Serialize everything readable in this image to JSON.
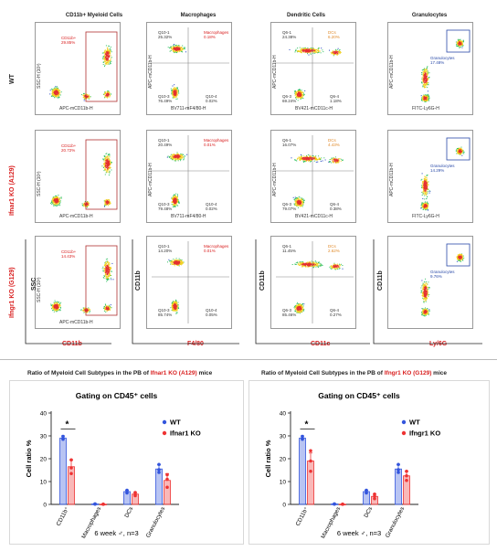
{
  "column_titles": [
    "CD11b+ Myeloid Cells",
    "Macrophages",
    "Dendritic Cells",
    "Granulocytes"
  ],
  "rows": [
    {
      "label": "WT",
      "label_color": "#222222",
      "panels": [
        {
          "gate_name": "CD11b+",
          "gate_pct": "29.85%",
          "xlab": "APC-mCD11b-H",
          "ylab": "SSC-H (10³)",
          "type": "scatter1"
        },
        {
          "q1": "Q10-1\n25.32%",
          "q2": "Macrophages\n0.18%",
          "q3": "Q10-3\n76.49%",
          "q4": "Q10-4\n0.02%",
          "xlab": "BV711-mF4/80-H",
          "ylab": "APC-mCD11b-H",
          "type": "mac"
        },
        {
          "q1": "Q6-1\n24.38%",
          "q2": "DCs\n6.20%",
          "q3": "Q6-3\n69.24%",
          "q4": "Q6-4\n1.18%",
          "xlab": "BV421-mCD11c-H",
          "ylab": "APC-mCD11b-H",
          "type": "dc"
        },
        {
          "gate": "Granulocytes\n17.48%",
          "xlab": "FITC-Ly6G-H",
          "ylab": "APC-mCD11b-H",
          "type": "gran"
        }
      ]
    },
    {
      "label": "Ifnar1 KO (A129)",
      "label_color": "#d92020",
      "panels": [
        {
          "gate_name": "CD11b+",
          "gate_pct": "20.72%",
          "xlab": "APC-mCD11b-H",
          "ylab": "SSC-H (10³)",
          "type": "scatter1"
        },
        {
          "q1": "Q10-1\n20.49%",
          "q2": "Macrophages\n0.01%",
          "q3": "Q10-3\n79.48%",
          "q4": "Q10-4\n0.02%",
          "xlab": "BV711-mF4/80-H",
          "ylab": "APC-mCD11b-H",
          "type": "mac"
        },
        {
          "q1": "Q6-1\n16.07%",
          "q2": "DCs\n4.43%",
          "q3": "Q6-3\n79.07%",
          "q4": "Q6-4\n0.38%",
          "xlab": "BV421-mCD11c-H",
          "ylab": "APC-mCD11b-H",
          "type": "dc"
        },
        {
          "gate": "Granulocytes\n14.29%",
          "xlab": "FITC-Ly6G-H",
          "ylab": "APC-mCD11b-H",
          "type": "gran"
        }
      ]
    },
    {
      "label": "Ifngr1 KO (G129)",
      "label_color": "#d92020",
      "panels": [
        {
          "gate_name": "CD11b+",
          "gate_pct": "14.43%",
          "xlab": "APC-mCD11b-H",
          "ylab": "SSC-H (10³)",
          "type": "scatter1"
        },
        {
          "q1": "Q10-1\n14.20%",
          "q2": "Macrophages\n0.01%",
          "q3": "Q10-3\n85.74%",
          "q4": "Q10-4\n0.05%",
          "xlab": "",
          "ylab": "",
          "type": "mac"
        },
        {
          "q1": "Q6-1\n11.45%",
          "q2": "DCs\n2.62%",
          "q3": "Q6-3\n85.46%",
          "q4": "Q6-4\n0.27%",
          "xlab": "",
          "ylab": "",
          "type": "dc"
        },
        {
          "gate": "Granulocytes\n9.76%",
          "xlab": "",
          "ylab": "",
          "type": "gran"
        }
      ]
    }
  ],
  "bottom_axes": [
    {
      "y": "SSC",
      "x": "CD11b"
    },
    {
      "y": "CD11b",
      "x": "F4/80"
    },
    {
      "y": "CD11b",
      "x": "CD11c"
    },
    {
      "y": "CD11b",
      "x": "Ly/6G"
    }
  ],
  "ratio_titles": [
    {
      "prefix": "Ratio of Myeloid Cell Subtypes in the PB of ",
      "strain": "Ifnar1 KO (A129)",
      "suffix": " mice"
    },
    {
      "prefix": "Ratio of Myeloid Cell Subtypes in the PB of ",
      "strain": "Ifngr1 KO (G129)",
      "suffix": " mice"
    }
  ],
  "chart_data": [
    {
      "type": "bar",
      "title": "Gating on CD45⁺ cells",
      "ylabel": "Cell ratio %",
      "ylim": [
        0,
        40
      ],
      "yticks": [
        0,
        10,
        20,
        30,
        40
      ],
      "categories": [
        "CD11b⁺",
        "Macrophages",
        "DCs",
        "Granulocytes"
      ],
      "series": [
        {
          "name": "WT",
          "color": "#3355dd",
          "values": [
            29.0,
            0.2,
            5.6,
            15.5
          ],
          "err": [
            1.0,
            0.1,
            0.6,
            1.8
          ],
          "points": [
            [
              28.5,
              29.8,
              28.9
            ],
            [
              0.2,
              0.1,
              0.2
            ],
            [
              5.0,
              6.2,
              5.5
            ],
            [
              14.0,
              17.5,
              15.2
            ]
          ]
        },
        {
          "name": "Ifnar1 KO",
          "color": "#ee3333",
          "values": [
            16.5,
            0.1,
            4.5,
            10.5
          ],
          "err": [
            3.0,
            0.05,
            0.8,
            3.0
          ],
          "points": [
            [
              19.5,
              13.5,
              16.0
            ],
            [
              0.1,
              0.05,
              0.1
            ],
            [
              3.8,
              5.2,
              4.4
            ],
            [
              13.0,
              7.5,
              11.0
            ]
          ]
        }
      ],
      "significance": {
        "label": "*",
        "pair": "CD11b⁺"
      },
      "footnote": "6 week ♂, n=3"
    },
    {
      "type": "bar",
      "title": "Gating on CD45⁺ cells",
      "ylabel": "Cell ratio %",
      "ylim": [
        0,
        40
      ],
      "yticks": [
        0,
        10,
        20,
        30,
        40
      ],
      "categories": [
        "CD11b⁺",
        "Macrophages",
        "DCs",
        "Granulocytes"
      ],
      "series": [
        {
          "name": "WT",
          "color": "#3355dd",
          "values": [
            29.0,
            0.2,
            5.6,
            15.5
          ],
          "err": [
            1.0,
            0.1,
            0.6,
            1.8
          ],
          "points": [
            [
              28.5,
              29.8,
              28.9
            ],
            [
              0.2,
              0.1,
              0.2
            ],
            [
              5.0,
              6.2,
              5.5
            ],
            [
              14.0,
              17.5,
              15.2
            ]
          ]
        },
        {
          "name": "Ifngr1 KO",
          "color": "#ee3333",
          "values": [
            19.0,
            0.1,
            3.5,
            12.5
          ],
          "err": [
            3.5,
            0.05,
            1.0,
            2.0
          ],
          "points": [
            [
              23.5,
              14.5,
              19.0
            ],
            [
              0.1,
              0.05,
              0.1
            ],
            [
              2.5,
              4.5,
              3.6
            ],
            [
              14.5,
              10.5,
              12.5
            ]
          ]
        }
      ],
      "significance": {
        "label": "*",
        "pair": "CD11b⁺"
      },
      "footnote": "6 week ♂, n=3"
    }
  ]
}
